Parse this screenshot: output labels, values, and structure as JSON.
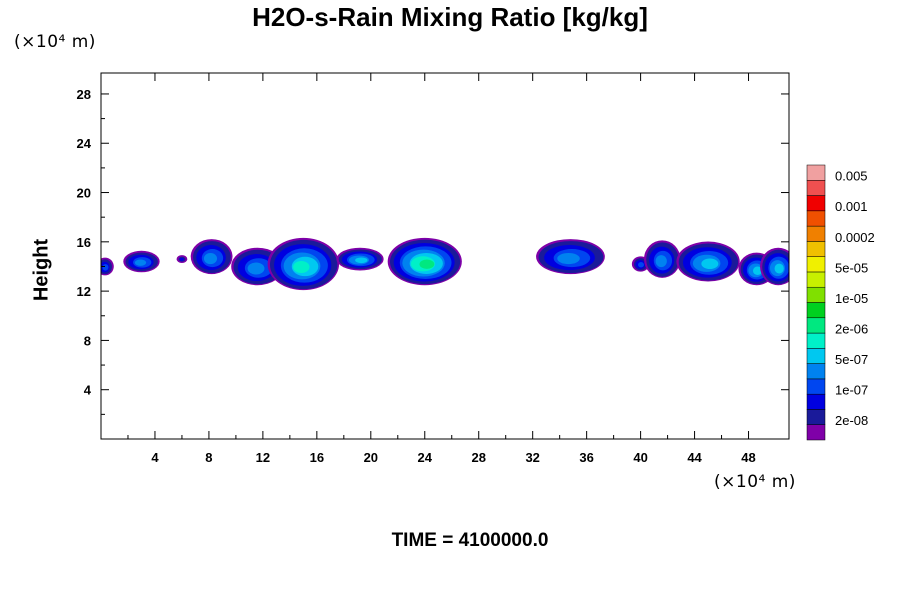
{
  "chart_data": {
    "type": "heatmap",
    "title": "H2O-s-Rain Mixing Ratio [kg/kg]",
    "ylabel": "Height",
    "xunit": "(×10⁴ m)",
    "yunit": "(×10⁴ m)",
    "xlim": [
      0,
      51
    ],
    "ylim": [
      0,
      29.7
    ],
    "xticks": [
      4,
      8,
      12,
      16,
      20,
      24,
      28,
      32,
      36,
      40,
      44,
      48
    ],
    "yticks": [
      4,
      8,
      12,
      16,
      20,
      24,
      28
    ],
    "time_label": "TIME = 4100000.0",
    "colorbar": {
      "colors": [
        "#7f00a8",
        "#1a1a9a",
        "#0000e0",
        "#0046f0",
        "#0082f0",
        "#00c8f0",
        "#00f0c8",
        "#00e880",
        "#00d020",
        "#80e000",
        "#c8f000",
        "#f0f000",
        "#f0c000",
        "#f08000",
        "#f05000",
        "#f00000",
        "#f05050",
        "#f0a0a0"
      ],
      "labels": [
        "2e-08",
        "1e-07",
        "5e-07",
        "2e-06",
        "1e-05",
        "5e-05",
        "0.0002",
        "0.001",
        "0.005"
      ]
    },
    "clouds": [
      {
        "x": 0.3,
        "y": 14.0,
        "w": 1.0,
        "h": 1.2,
        "level": 3
      },
      {
        "x": 3.0,
        "y": 14.4,
        "w": 2.4,
        "h": 1.5,
        "level": 4
      },
      {
        "x": 6.0,
        "y": 14.6,
        "w": 0.5,
        "h": 0.4,
        "level": 2
      },
      {
        "x": 8.2,
        "y": 14.8,
        "w": 2.8,
        "h": 2.6,
        "level": 4
      },
      {
        "x": 11.6,
        "y": 14.0,
        "w": 3.6,
        "h": 2.8,
        "level": 4
      },
      {
        "x": 15.0,
        "y": 14.2,
        "w": 5.0,
        "h": 4.0,
        "level": 6
      },
      {
        "x": 19.2,
        "y": 14.6,
        "w": 3.2,
        "h": 1.6,
        "level": 5
      },
      {
        "x": 24.0,
        "y": 14.4,
        "w": 5.2,
        "h": 3.6,
        "level": 7
      },
      {
        "x": 34.8,
        "y": 14.8,
        "w": 4.8,
        "h": 2.6,
        "level": 4
      },
      {
        "x": 40.0,
        "y": 14.2,
        "w": 1.0,
        "h": 1.0,
        "level": 3
      },
      {
        "x": 41.6,
        "y": 14.6,
        "w": 2.4,
        "h": 2.8,
        "level": 4
      },
      {
        "x": 45.0,
        "y": 14.4,
        "w": 4.4,
        "h": 3.0,
        "level": 5
      },
      {
        "x": 48.6,
        "y": 13.8,
        "w": 2.4,
        "h": 2.4,
        "level": 5
      },
      {
        "x": 50.2,
        "y": 14.0,
        "w": 2.4,
        "h": 2.8,
        "level": 5
      }
    ]
  }
}
